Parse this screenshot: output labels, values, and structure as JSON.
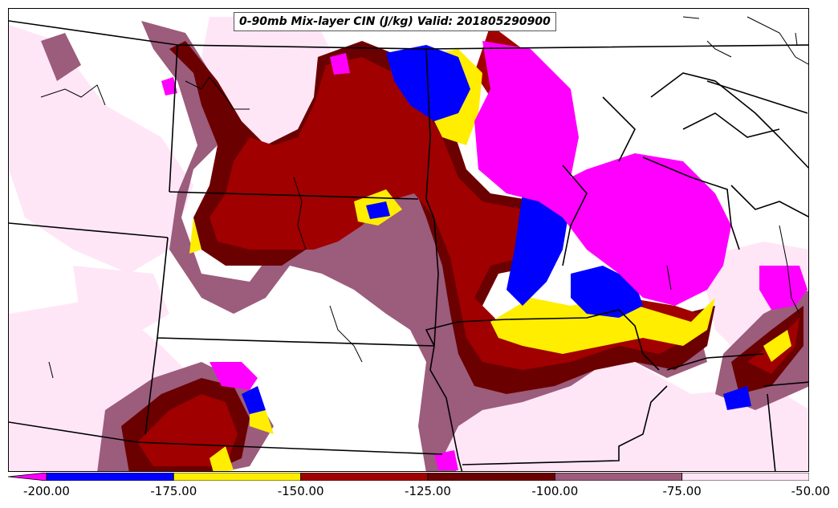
{
  "title": "0-90mb Mix-layer CIN (J/kg) Valid: 201805290900",
  "colorbar": {
    "bins": [
      {
        "from": -200,
        "to": -175,
        "color": "#0000ff"
      },
      {
        "from": -175,
        "to": -150,
        "color": "#ffee00"
      },
      {
        "from": -150,
        "to": -125,
        "color": "#a00000"
      },
      {
        "from": -125,
        "to": -100,
        "color": "#6b0000"
      },
      {
        "from": -100,
        "to": -75,
        "color": "#9c5c7c"
      },
      {
        "from": -75,
        "to": -50,
        "color": "#ffe6f7"
      }
    ],
    "below_min_color": "#ff00ff",
    "ticks": [
      "-200.00",
      "-175.00",
      "-150.00",
      "-125.00",
      "-100.00",
      "-75.00",
      "-50.00"
    ]
  },
  "colors": {
    "magenta": "#ff00ff",
    "blue": "#0000ff",
    "yellow": "#ffee00",
    "red": "#a00000",
    "darkred": "#6b0000",
    "mauve": "#9c5c7c",
    "pink": "#ffe6f7",
    "boundary": "#000000"
  }
}
